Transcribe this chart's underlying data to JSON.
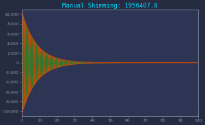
{
  "title": "Manual Shimming: 1956407.8",
  "title_color": "#00ddff",
  "bg_color": "#252c42",
  "plot_bg_color": "#2d3555",
  "grid_color": "#3d4870",
  "xlim": [
    0,
    100
  ],
  "ylim": [
    -11000,
    11000
  ],
  "yticks": [
    -10000,
    -8000,
    -6000,
    -4000,
    -2000,
    0,
    2000,
    4000,
    6000,
    8000,
    10000
  ],
  "xticks": [
    0,
    10,
    20,
    30,
    40,
    50,
    60,
    70,
    80,
    90,
    100
  ],
  "tick_color": "#8899aa",
  "tick_fontsize": 4.5,
  "title_fontsize": 6.5,
  "n_points": 5000,
  "decay_rate": 0.12,
  "frequency": 0.18,
  "amplitude": 10500,
  "orange_fill": "#b05010",
  "green_fill": "#2d7a30",
  "red_line": "#cc1100"
}
